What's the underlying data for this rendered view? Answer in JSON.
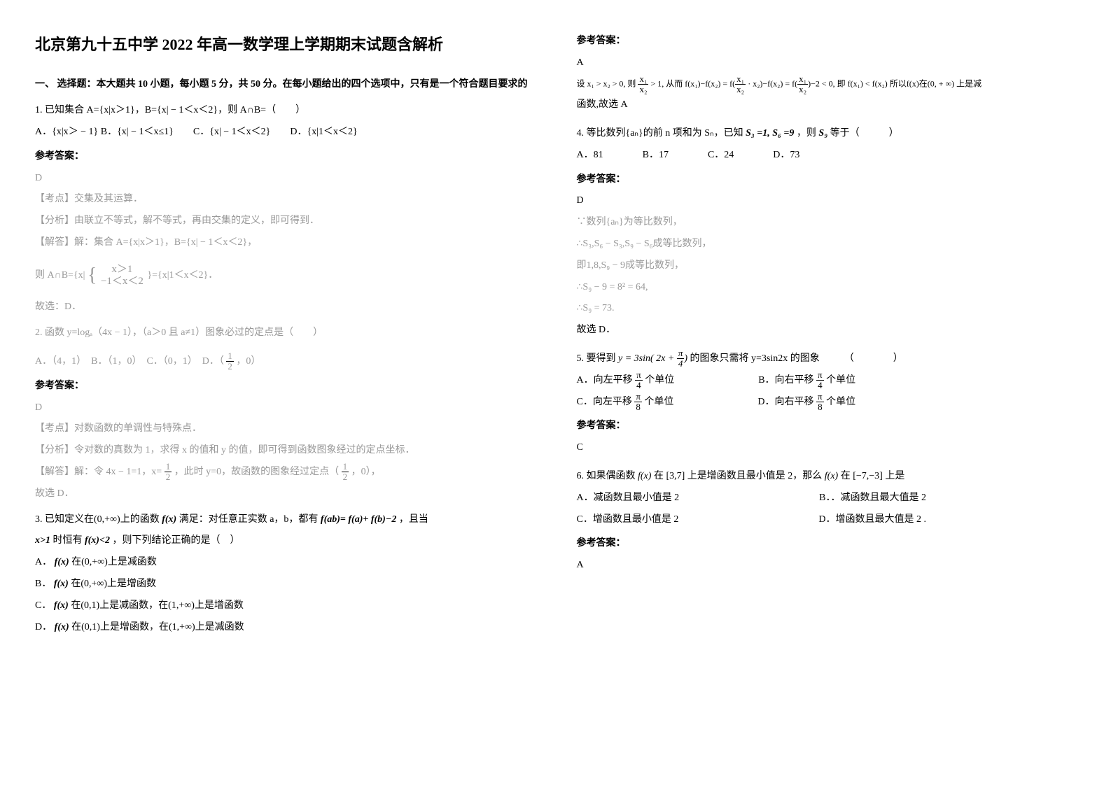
{
  "title": "北京第九十五中学 2022 年高一数学理上学期期末试题含解析",
  "section1": "一、 选择题：本大题共 10 小题，每小题 5 分，共 50 分。在每小题给出的四个选项中，只有是一个符合题目要求的",
  "q1": {
    "stem": "1. 已知集合 A={x|x＞1}，B={x| − 1＜x＜2}，则 A∩B=（　　）",
    "options": "A．{x|x＞ − 1} B．{x| − 1＜x≤1}　　C．{x| − 1＜x＜2}　　D．{x|1＜x＜2}",
    "ans_label": "参考答案：",
    "ans": "D",
    "expl1": "【考点】交集及其运算．",
    "expl2": "【分析】由联立不等式，解不等式，再由交集的定义，即可得到．",
    "expl3": "【解答】解：集合 A={x|x＞1}，B={x| − 1＜x＜2}，",
    "expl4_pre": "则 A∩B={x|",
    "expl4_brace_top": "x＞1",
    "expl4_brace_bot": "−1＜x＜2",
    "expl4_post": "}={x|1＜x＜2}．",
    "expl5": "故选：D．"
  },
  "q2": {
    "stem": "2. 函数 y=logₐ（4x − 1），（a＞0 且 a≠1）图象必过的定点是（　　）",
    "opt_pre": "A．（4，1）　B．（1，0）　C．（0，1）　D．（",
    "opt_post": "，0）",
    "ans_label": "参考答案：",
    "ans": "D",
    "expl1": "【考点】对数函数的单调性与特殊点．",
    "expl2": "【分析】令对数的真数为 1，求得 x 的值和 y 的值，即可得到函数图象经过的定点坐标．",
    "expl3_pre": "【解答】解：令 4x − 1=1，x=",
    "expl3_mid": "，此时 y=0，故函数的图象经过定点（",
    "expl3_post": "，0），",
    "expl4": "故选 D．"
  },
  "q3": {
    "stem_a": "3. 已知定义在(0,+∞)上的函数",
    "stem_b": "满足：对任意正实数 a，b，都有",
    "stem_c": "，且当",
    "stem2_a": "时恒有",
    "stem2_b": "，则下列结论正确的是（　）",
    "optA_a": "A．",
    "optA_b": "在(0,+∞)上是减函数",
    "optB_a": "B．",
    "optB_b": "在(0,+∞)上是增函数",
    "optC_a": "C．",
    "optC_b": "在(0,1)上是减函数，在(1,+∞)上是增函数",
    "optD_a": "D．",
    "optD_b": "在(0,1)上是增函数，在(1,+∞)上是减函数",
    "fx": "f(x)",
    "fab": "f(ab)= f(a)+ f(b)−2",
    "xgt1": "x>1",
    "fxlt2": "f(x)<2"
  },
  "col2": {
    "ans_label_3": "参考答案：",
    "ans3": "A",
    "expl3_a": "设",
    "expl3_b": "x₁ > x₂ > 0,",
    "expl3_c": "则",
    "expl3_d": "从而",
    "expl3_e": "即",
    "expl3_f": "f(x₁) < f(x₂)",
    "expl3_g": "所以f(x)在(0, + ∞) 上是减",
    "expl3_h": "函数,故选 A"
  },
  "q4": {
    "stem_a": "4. 等比数列{aₙ}的前 n 项和为 Sₙ，已知",
    "stem_b": "，则",
    "stem_c": "等于（　　　）",
    "s3eq1": "S₃ =1,",
    "s6eq9": "S₆ =9",
    "s9": "S₉",
    "options": "A．81　　　　B．17　　　　C．24　　　　D．73",
    "ans_label": "参考答案：",
    "ans": "D",
    "e1": "∵数列{aₙ}为等比数列，",
    "e2": "∴S₃,S₆ − S₃,S₉ − S₆成等比数列，",
    "e3": "即1,8,S₉ − 9成等比数列，",
    "e4": "∴S₉ − 9 = 8² = 64,",
    "e5": "∴S₉ = 73.",
    "e6": "故选 D．"
  },
  "q5": {
    "stem_a": "5. 要得到",
    "stem_b": "的图象只需将 y=3sin2x 的图象　　　（　　　　）",
    "formula": "y = 3sin( 2x + π/4 )",
    "optA_a": "A．向左平移",
    "optA_b": "个单位",
    "optB_a": "B．向右平移",
    "optB_b": "个单位",
    "optC_a": "C．向左平移",
    "optC_b": "个单位",
    "optD_a": "D．向右平移",
    "optD_b": "个单位",
    "ans_label": "参考答案：",
    "ans": "C"
  },
  "q6": {
    "stem_a": "6. 如果偶函数",
    "stem_b": "在",
    "stem_c": "上是增函数且最小值是 2，那么",
    "stem_d": "在",
    "stem_e": "上是",
    "fx": "f(x)",
    "r37": "[3,7]",
    "rneg": "[−7,−3]",
    "optA": "A．减函数且最小值是 2",
    "optB": "B．．减函数且最大值是 2",
    "optC": "C．增函数且最小值是 2",
    "optD": "D．增函数且最大值是 2 .",
    "ans_label": "参考答案：",
    "ans": "A"
  },
  "half": {
    "n": "1",
    "d": "2"
  },
  "pi4": {
    "n": "π",
    "d": "4"
  },
  "pi8": {
    "n": "π",
    "d": "8"
  },
  "x1x2": {
    "n": "x₁",
    "d": "x₂"
  }
}
